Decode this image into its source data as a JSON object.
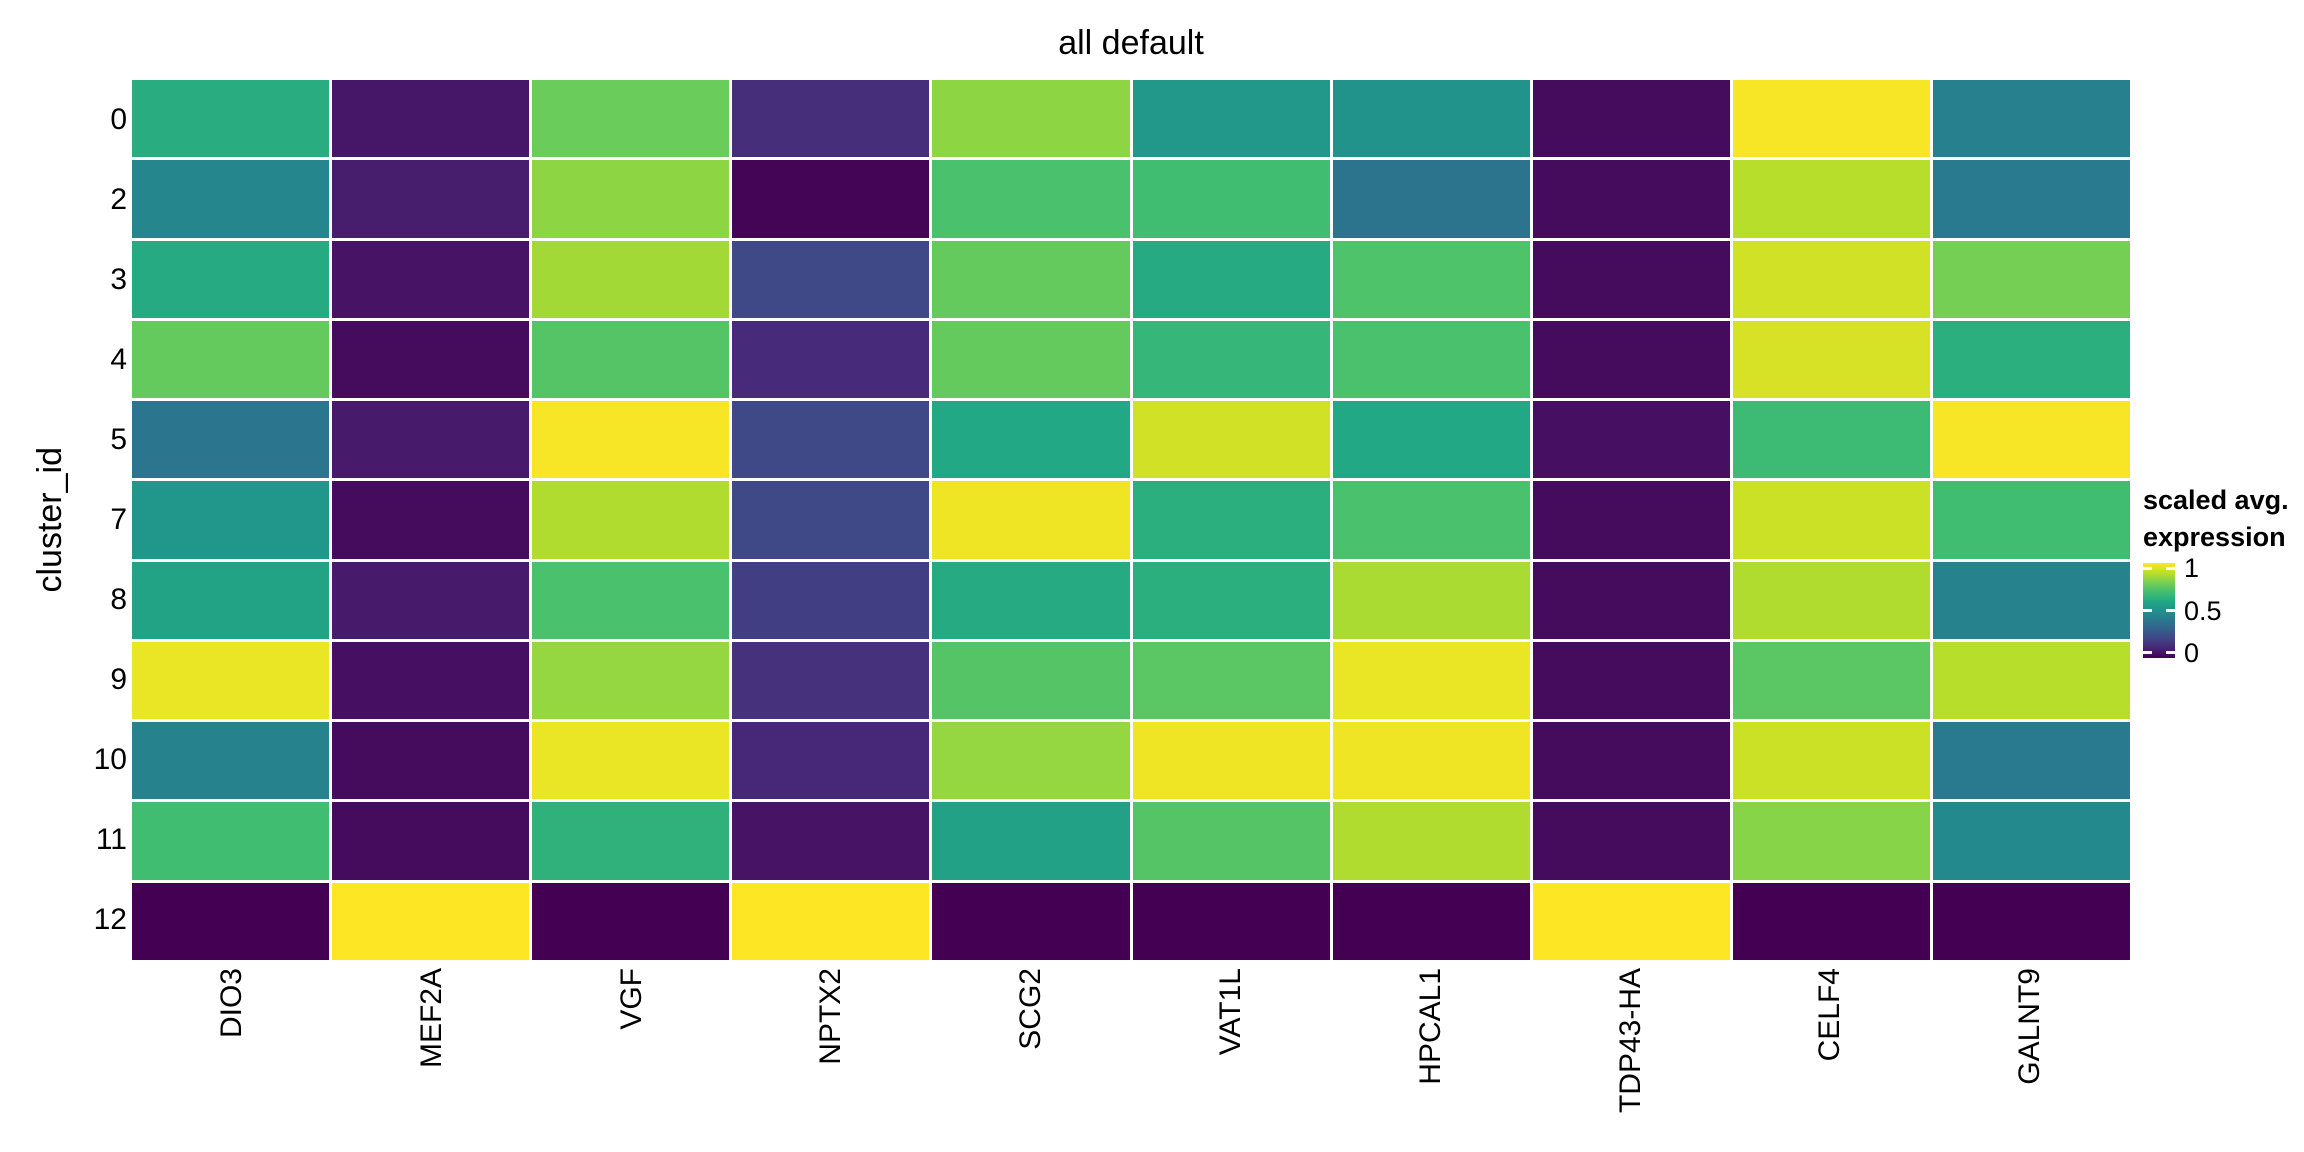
{
  "title": "all default",
  "y_axis": {
    "title": "cluster_id",
    "ticks": [
      "0",
      "2",
      "3",
      "4",
      "5",
      "7",
      "8",
      "9",
      "10",
      "11",
      "12"
    ]
  },
  "x_axis": {
    "ticks": [
      "DIO3",
      "MEF2A",
      "VGF",
      "NPTX2",
      "SCG2",
      "VAT1L",
      "HPCAL1",
      "TDP43-HA",
      "CELF4",
      "GALNT9"
    ]
  },
  "legend": {
    "title_line1": "scaled avg.",
    "title_line2": "expression",
    "tick_labels": [
      "1",
      "0.5",
      "0"
    ],
    "tick_values": [
      1,
      0.5,
      0
    ],
    "bar_range": [
      -0.06,
      1.06
    ]
  },
  "colors": {
    "background": "#ffffff",
    "text": "#000000",
    "grid_gap": "#ffffff",
    "viridis_stops": [
      "#440154",
      "#482475",
      "#414487",
      "#355f8d",
      "#2a788e",
      "#21918c",
      "#22a884",
      "#44bf70",
      "#7ad151",
      "#bddf26",
      "#fde725"
    ]
  },
  "chart_data": {
    "type": "heatmap",
    "title": "all default",
    "xlabel": "",
    "ylabel": "cluster_id",
    "legend_title": "scaled avg. expression",
    "colormap": "viridis",
    "value_range": [
      0,
      1
    ],
    "x_categories": [
      "DIO3",
      "MEF2A",
      "VGF",
      "NPTX2",
      "SCG2",
      "VAT1L",
      "HPCAL1",
      "TDP43-HA",
      "CELF4",
      "GALNT9"
    ],
    "y_categories": [
      "0",
      "2",
      "3",
      "4",
      "5",
      "7",
      "8",
      "9",
      "10",
      "11",
      "12"
    ],
    "values": [
      [
        0.62,
        0.06,
        0.77,
        0.13,
        0.83,
        0.53,
        0.51,
        0.03,
        0.99,
        0.43
      ],
      [
        0.46,
        0.08,
        0.83,
        0.01,
        0.71,
        0.69,
        0.38,
        0.03,
        0.89,
        0.41
      ],
      [
        0.61,
        0.05,
        0.86,
        0.22,
        0.76,
        0.61,
        0.72,
        0.03,
        0.93,
        0.79
      ],
      [
        0.76,
        0.03,
        0.73,
        0.12,
        0.76,
        0.66,
        0.71,
        0.03,
        0.94,
        0.63
      ],
      [
        0.39,
        0.07,
        0.99,
        0.22,
        0.6,
        0.93,
        0.6,
        0.04,
        0.68,
        0.99
      ],
      [
        0.52,
        0.03,
        0.88,
        0.22,
        0.98,
        0.63,
        0.71,
        0.03,
        0.92,
        0.69
      ],
      [
        0.58,
        0.07,
        0.71,
        0.18,
        0.61,
        0.63,
        0.87,
        0.03,
        0.88,
        0.44
      ],
      [
        0.97,
        0.04,
        0.84,
        0.14,
        0.73,
        0.74,
        0.97,
        0.03,
        0.74,
        0.89
      ],
      [
        0.44,
        0.03,
        0.97,
        0.11,
        0.84,
        0.98,
        0.98,
        0.03,
        0.92,
        0.41
      ],
      [
        0.69,
        0.03,
        0.64,
        0.05,
        0.57,
        0.73,
        0.88,
        0.03,
        0.82,
        0.47
      ],
      [
        0.0,
        1.0,
        0.0,
        1.0,
        0.0,
        0.0,
        0.0,
        1.0,
        0.0,
        0.0
      ]
    ]
  }
}
